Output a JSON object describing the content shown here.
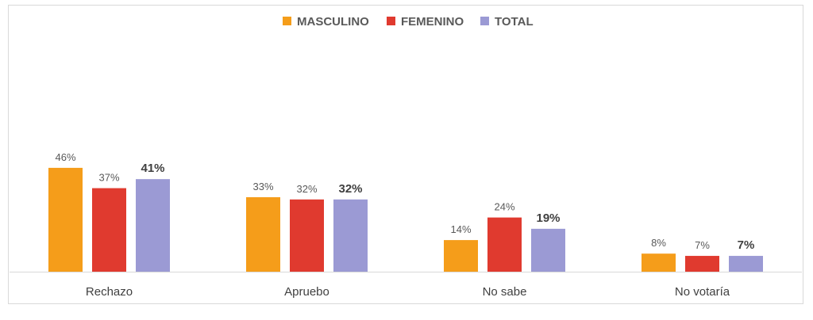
{
  "chart_data": {
    "type": "bar",
    "title": "",
    "xlabel": "",
    "ylabel": "",
    "ylim": [
      0,
      50
    ],
    "grid": false,
    "legend_position": "top-center",
    "categories": [
      "Rechazo",
      "Apruebo",
      "No sabe",
      "No votaría"
    ],
    "series": [
      {
        "name": "MASCULINO",
        "color": "#f59d1a",
        "values": [
          46,
          33,
          14,
          8
        ],
        "labels": [
          "46%",
          "33%",
          "14%",
          "8%"
        ],
        "bold_labels": false
      },
      {
        "name": "FEMENINO",
        "color": "#e03a2f",
        "values": [
          37,
          32,
          24,
          7
        ],
        "labels": [
          "37%",
          "32%",
          "24%",
          "7%"
        ],
        "bold_labels": false
      },
      {
        "name": "TOTAL",
        "color": "#9b9ad4",
        "values": [
          41,
          32,
          19,
          7
        ],
        "labels": [
          "41%",
          "32%",
          "19%",
          "7%"
        ],
        "bold_labels": true
      }
    ]
  }
}
